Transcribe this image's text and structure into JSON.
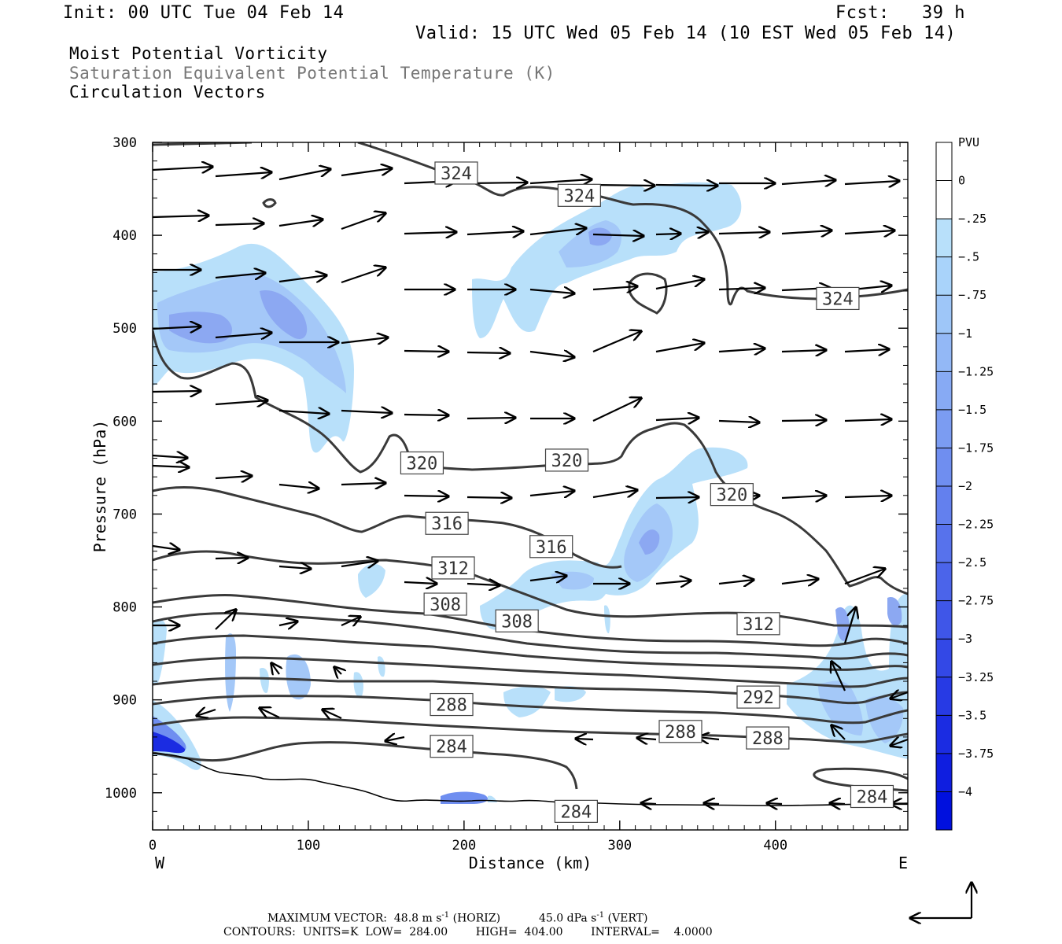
{
  "header": {
    "init": "Init: 00 UTC Tue 04 Feb 14",
    "fcst": "Fcst:   39 h",
    "valid": "Valid: 15 UTC Wed 05 Feb 14 (10 EST Wed 05 Feb 14)",
    "line1": "Moist Potential Vorticity",
    "line2": "Saturation Equivalent Potential Temperature (K)",
    "line3": "Circulation Vectors"
  },
  "chart_data": {
    "type": "cross-section",
    "xlabel": "Distance (km)",
    "ylabel": "Pressure (hPa)",
    "xlim": [
      0,
      485
    ],
    "ylim": [
      1040,
      300
    ],
    "x_ticks": [
      "0",
      "100",
      "200",
      "300",
      "400"
    ],
    "y_ticks": [
      "300",
      "400",
      "500",
      "600",
      "700",
      "800",
      "900",
      "1000"
    ],
    "left_label": "W",
    "right_label": "E",
    "colorbar": {
      "unit": "PVU",
      "labels": [
        "0",
        "-.25",
        "-.5",
        "-.75",
        "-1",
        "-1.25",
        "-1.5",
        "-1.75",
        "-2",
        "-2.25",
        "-2.5",
        "-2.75",
        "-3",
        "-3.25",
        "-3.5",
        "-3.75",
        "-4"
      ],
      "colors": [
        "#ffffff",
        "#ffffff",
        "#b8e0fa",
        "#a9d3fa",
        "#9ec6f8",
        "#93b8f6",
        "#87aaf4",
        "#7b9cf2",
        "#6f8ef0",
        "#6380ee",
        "#5772ec",
        "#4b64ea",
        "#3f56e8",
        "#3348e6",
        "#273ae4",
        "#1b2ce2",
        "#0f1ee0",
        "#0010de"
      ]
    },
    "contour_labels": [
      {
        "text": "324",
        "x": 195,
        "p": 333
      },
      {
        "text": "324",
        "x": 274,
        "p": 357
      },
      {
        "text": "324",
        "x": 440,
        "p": 468
      },
      {
        "text": "320",
        "x": 173,
        "p": 645
      },
      {
        "text": "320",
        "x": 266,
        "p": 642
      },
      {
        "text": "320",
        "x": 372,
        "p": 679
      },
      {
        "text": "316",
        "x": 189,
        "p": 710
      },
      {
        "text": "316",
        "x": 256,
        "p": 735
      },
      {
        "text": "312",
        "x": 193,
        "p": 758
      },
      {
        "text": "312",
        "x": 389,
        "p": 818
      },
      {
        "text": "308",
        "x": 188,
        "p": 797
      },
      {
        "text": "308",
        "x": 234,
        "p": 815
      },
      {
        "text": "292",
        "x": 389,
        "p": 897
      },
      {
        "text": "288",
        "x": 192,
        "p": 905
      },
      {
        "text": "288",
        "x": 339,
        "p": 934
      },
      {
        "text": "288",
        "x": 395,
        "p": 941
      },
      {
        "text": "284",
        "x": 192,
        "p": 950
      },
      {
        "text": "284",
        "x": 272,
        "p": 1020
      },
      {
        "text": "284",
        "x": 462,
        "p": 1004
      }
    ],
    "footer_line1": "MAXIMUM VECTOR:  48.8 m s",
    "footer_line1b": " (HORIZ)           45.0 dPa s",
    "footer_line1c": " (VERT)",
    "footer_exp": "-1",
    "footer_line2": "CONTOURS:  UNITS=K  LOW=  284.00        HIGH=  404.00        INTERVAL=    4.0000"
  }
}
